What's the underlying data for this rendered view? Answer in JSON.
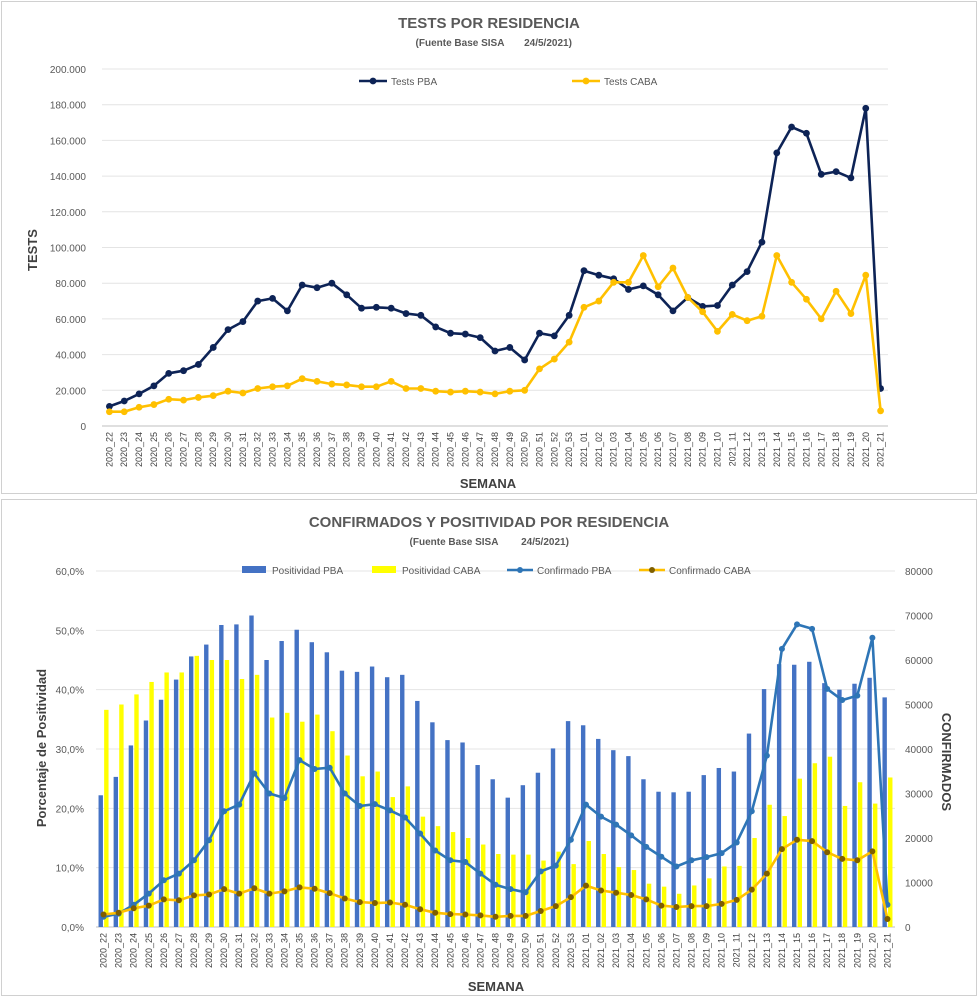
{
  "chart_data": [
    {
      "type": "line",
      "title": "TESTS POR RESIDENCIA",
      "subtitle": "(Fuente Base SISA",
      "date": "24/5/2021)",
      "xlabel": "SEMANA",
      "ylabel": "TESTS",
      "ylim": [
        0,
        200000
      ],
      "yticks": [
        "0",
        "20.000",
        "40.000",
        "60.000",
        "80.000",
        "100.000",
        "120.000",
        "140.000",
        "160.000",
        "180.000",
        "200.000"
      ],
      "legend_position": "top",
      "categories": [
        "2020_22",
        "2020_23",
        "2020_24",
        "2020_25",
        "2020_26",
        "2020_27",
        "2020_28",
        "2020_29",
        "2020_30",
        "2020_31",
        "2020_32",
        "2020_33",
        "2020_34",
        "2020_35",
        "2020_36",
        "2020_37",
        "2020_38",
        "2020_39",
        "2020_40",
        "2020_41",
        "2020_42",
        "2020_43",
        "2020_44",
        "2020_45",
        "2020_46",
        "2020_47",
        "2020_48",
        "2020_49",
        "2020_50",
        "2020_51",
        "2020_52",
        "2020_53",
        "2021_01",
        "2021_02",
        "2021_03",
        "2021_04",
        "2021_05",
        "2021_06",
        "2021_07",
        "2021_08",
        "2021_09",
        "2021_10",
        "2021_11",
        "2021_12",
        "2021_13",
        "2021_14",
        "2021_15",
        "2021_16",
        "2021_17",
        "2021_18",
        "2021_19",
        "2021_20",
        "2021_21"
      ],
      "series": [
        {
          "name": "Tests PBA",
          "color": "#0d2356",
          "values": [
            11000,
            14000,
            18000,
            22500,
            29500,
            31000,
            34500,
            44000,
            54000,
            58500,
            70000,
            71500,
            64500,
            79000,
            77500,
            80000,
            73500,
            66000,
            66500,
            66000,
            63000,
            62000,
            55500,
            52000,
            51500,
            49500,
            42000,
            44000,
            37000,
            52000,
            50500,
            62000,
            87000,
            84500,
            82500,
            76500,
            78500,
            73500,
            64500,
            72000,
            67000,
            67500,
            79000,
            86500,
            103000,
            153000,
            167500,
            164000,
            141000,
            142500,
            139000,
            178000,
            21000
          ]
        },
        {
          "name": "Tests CABA",
          "color": "#ffc000",
          "values": [
            8000,
            8000,
            10500,
            12000,
            15000,
            14500,
            16000,
            17000,
            19500,
            18500,
            21000,
            22000,
            22500,
            26500,
            25000,
            23500,
            23000,
            22000,
            22000,
            25000,
            21000,
            21000,
            19500,
            19000,
            19500,
            19000,
            18000,
            19500,
            20000,
            32000,
            37500,
            47000,
            66500,
            70000,
            80500,
            80500,
            95500,
            78000,
            88500,
            72000,
            64000,
            53000,
            62500,
            59000,
            61500,
            95500,
            80500,
            71000,
            60000,
            75500,
            63000,
            84500,
            8500
          ]
        }
      ]
    },
    {
      "type": "bar",
      "title": "CONFIRMADOS Y POSITIVIDAD POR RESIDENCIA",
      "subtitle": "(Fuente Base SISA",
      "date": "24/5/2021)",
      "xlabel": "SEMANA",
      "ylabel": "Porcentaje de Positividad",
      "y2label": "CONFIRMADOS",
      "ylim": [
        0,
        60
      ],
      "y2lim": [
        0,
        80000
      ],
      "yticks": [
        "0,0%",
        "10,0%",
        "20,0%",
        "30,0%",
        "40,0%",
        "50,0%",
        "60,0%"
      ],
      "y2ticks": [
        "0",
        "10000",
        "20000",
        "30000",
        "40000",
        "50000",
        "60000",
        "70000",
        "80000"
      ],
      "legend_position": "top",
      "categories": [
        "2020_22",
        "2020_23",
        "2020_24",
        "2020_25",
        "2020_26",
        "2020_27",
        "2020_28",
        "2020_29",
        "2020_30",
        "2020_31",
        "2020_32",
        "2020_33",
        "2020_34",
        "2020_35",
        "2020_36",
        "2020_37",
        "2020_38",
        "2020_39",
        "2020_40",
        "2020_41",
        "2020_42",
        "2020_43",
        "2020_44",
        "2020_45",
        "2020_46",
        "2020_47",
        "2020_48",
        "2020_49",
        "2020_50",
        "2020_51",
        "2020_52",
        "2020_53",
        "2021_01",
        "2021_02",
        "2021_03",
        "2021_04",
        "2021_05",
        "2021_06",
        "2021_07",
        "2021_08",
        "2021_09",
        "2021_10",
        "2021_11",
        "2021_12",
        "2021_13",
        "2021_14",
        "2021_15",
        "2021_16",
        "2021_17",
        "2021_18",
        "2021_19",
        "2021_20",
        "2021_21"
      ],
      "bar_series": [
        {
          "name": "Positividad PBA",
          "color": "#4472c4",
          "values": [
            22.2,
            25.3,
            30.6,
            34.8,
            38.3,
            41.7,
            45.6,
            47.6,
            50.9,
            51.0,
            52.5,
            45.0,
            48.2,
            50.1,
            48.0,
            46.3,
            43.2,
            43.0,
            43.9,
            42.1,
            42.5,
            38.1,
            34.5,
            31.5,
            31.1,
            27.3,
            24.9,
            21.8,
            23.9,
            26.0,
            30.1,
            34.7,
            34.0,
            31.7,
            29.8,
            28.8,
            24.9,
            22.8,
            22.7,
            22.8,
            25.6,
            26.8,
            26.2,
            32.6,
            40.1,
            44.3,
            44.2,
            44.7,
            41.1,
            40.0,
            41.0,
            42.0,
            38.7
          ]
        },
        {
          "name": "Positividad CABA",
          "color": "#ffff00",
          "values": [
            36.6,
            37.5,
            39.2,
            41.3,
            42.9,
            42.9,
            45.7,
            45.0,
            45.0,
            41.8,
            42.5,
            35.3,
            36.1,
            34.6,
            35.8,
            33.0,
            28.9,
            25.4,
            26.2,
            21.9,
            23.7,
            18.6,
            17.0,
            16.0,
            15.0,
            13.9,
            12.3,
            12.2,
            12.2,
            11.2,
            12.7,
            10.6,
            14.5,
            12.3,
            10.1,
            9.6,
            7.3,
            6.8,
            5.6,
            7.0,
            8.2,
            10.2,
            10.3,
            15.0,
            20.6,
            18.7,
            25.0,
            27.6,
            28.7,
            20.4,
            24.4,
            20.8,
            25.2
          ]
        }
      ],
      "line_series": [
        {
          "name": "Confirmado PBA",
          "color": "#2e75b6",
          "values": [
            2300,
            3000,
            5000,
            7500,
            10500,
            12000,
            15000,
            19500,
            26000,
            27500,
            34500,
            30000,
            29000,
            37500,
            35500,
            35800,
            30000,
            27200,
            27600,
            26200,
            24600,
            21000,
            17200,
            15000,
            14600,
            12000,
            9500,
            8500,
            7800,
            12500,
            13800,
            19600,
            27500,
            24800,
            23000,
            20600,
            18000,
            15800,
            13600,
            15000,
            15700,
            16600,
            19000,
            26000,
            38500,
            62500,
            68000,
            67000,
            53500,
            51000,
            52000,
            65000,
            5000
          ]
        },
        {
          "name": "Confirmado CABA",
          "color": "#ffc000",
          "marker_color": "#7f5f00",
          "values": [
            2800,
            3200,
            4200,
            4800,
            6200,
            6000,
            7100,
            7300,
            8500,
            7500,
            8700,
            7500,
            8000,
            8900,
            8600,
            7600,
            6400,
            5600,
            5400,
            5500,
            5000,
            4000,
            3200,
            2900,
            2800,
            2600,
            2300,
            2500,
            2500,
            3600,
            4700,
            6700,
            9300,
            8200,
            7700,
            7200,
            6200,
            4800,
            4500,
            4700,
            4700,
            5200,
            6100,
            8400,
            12000,
            17500,
            19600,
            19300,
            16800,
            15300,
            15000,
            17000,
            1800
          ]
        }
      ]
    }
  ]
}
